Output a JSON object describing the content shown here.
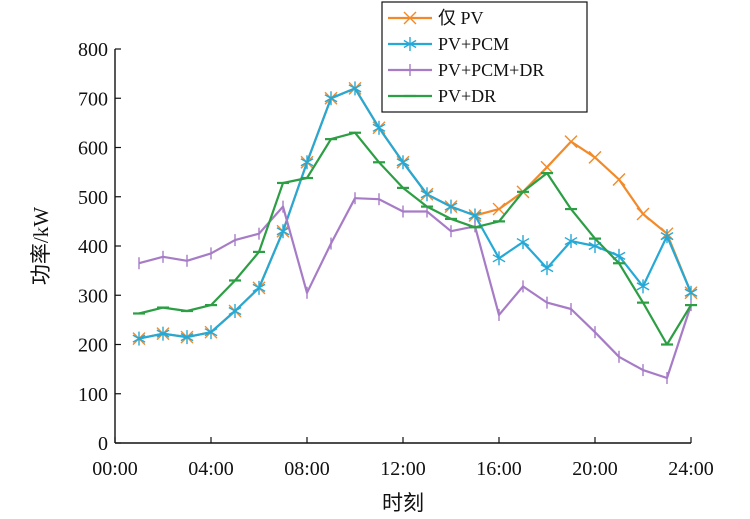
{
  "chart_data": {
    "type": "line",
    "xlabel": "时刻",
    "ylabel": "功率/kW",
    "xlim": [
      0,
      24
    ],
    "ylim": [
      0,
      800
    ],
    "x_ticks": [
      0,
      4,
      8,
      12,
      16,
      20,
      24
    ],
    "x_tick_labels": [
      "00:00",
      "04:00",
      "08:00",
      "12:00",
      "16:00",
      "20:00",
      "24:00"
    ],
    "y_ticks": [
      0,
      100,
      200,
      300,
      400,
      500,
      600,
      700,
      800
    ],
    "y_tick_labels": [
      "0",
      "100",
      "200",
      "300",
      "400",
      "500",
      "600",
      "700",
      "800"
    ],
    "grid": false,
    "legend_position": "top-right",
    "series": [
      {
        "name": "仅 PV",
        "color": "#f28a2a",
        "marker": "x",
        "x": [
          1,
          2,
          3,
          4,
          5,
          6,
          7,
          8,
          9,
          10,
          11,
          12,
          13,
          14,
          15,
          16,
          17,
          18,
          19,
          20,
          21,
          22,
          23,
          24
        ],
        "values": [
          212,
          222,
          215,
          225,
          268,
          315,
          430,
          570,
          700,
          720,
          640,
          570,
          505,
          480,
          462,
          475,
          510,
          560,
          612,
          580,
          535,
          465,
          425,
          305
        ]
      },
      {
        "name": "PV+PCM",
        "color": "#25a9d6",
        "marker": "asterisk",
        "x": [
          1,
          2,
          3,
          4,
          5,
          6,
          7,
          8,
          9,
          10,
          11,
          12,
          13,
          14,
          15,
          16,
          17,
          18,
          19,
          20,
          21,
          22,
          23,
          24
        ],
        "values": [
          212,
          222,
          215,
          225,
          268,
          315,
          430,
          570,
          700,
          720,
          640,
          570,
          505,
          480,
          462,
          375,
          408,
          355,
          410,
          400,
          380,
          318,
          420,
          305
        ]
      },
      {
        "name": "PV+PCM+DR",
        "color": "#a77cc7",
        "marker": "vbar",
        "x": [
          1,
          2,
          3,
          4,
          5,
          6,
          7,
          8,
          9,
          10,
          11,
          12,
          13,
          14,
          15,
          16,
          17,
          18,
          19,
          20,
          21,
          22,
          23,
          24
        ],
        "values": [
          365,
          378,
          370,
          385,
          412,
          425,
          480,
          305,
          405,
          497,
          495,
          470,
          470,
          430,
          440,
          260,
          318,
          285,
          272,
          225,
          175,
          148,
          132,
          280
        ]
      },
      {
        "name": "PV+DR",
        "color": "#2c9e44",
        "marker": "hbar",
        "x": [
          1,
          2,
          3,
          4,
          5,
          6,
          7,
          8,
          9,
          10,
          11,
          12,
          13,
          14,
          15,
          16,
          17,
          18,
          19,
          20,
          21,
          22,
          23,
          24
        ],
        "values": [
          263,
          275,
          268,
          280,
          330,
          388,
          528,
          538,
          617,
          630,
          570,
          518,
          480,
          455,
          438,
          450,
          510,
          548,
          475,
          415,
          365,
          285,
          200,
          280
        ]
      }
    ]
  }
}
